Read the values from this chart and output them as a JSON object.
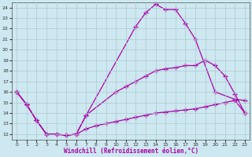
{
  "xlabel": "Windchill (Refroidissement éolien,°C)",
  "xlim": [
    -0.5,
    23.5
  ],
  "ylim": [
    11.5,
    24.5
  ],
  "yticks": [
    12,
    13,
    14,
    15,
    16,
    17,
    18,
    19,
    20,
    21,
    22,
    23,
    24
  ],
  "xticks": [
    0,
    1,
    2,
    3,
    4,
    5,
    6,
    7,
    8,
    9,
    10,
    11,
    12,
    13,
    14,
    15,
    16,
    17,
    18,
    19,
    20,
    21,
    22,
    23
  ],
  "bg_color": "#cde8f0",
  "line_color": "#aa00aa",
  "grid_color": "#b0c8d0",
  "line1_x": [
    0,
    1,
    2,
    3,
    4,
    5,
    6,
    7,
    12,
    13,
    14,
    15,
    16,
    17,
    18,
    20,
    22,
    23
  ],
  "line1_y": [
    16.0,
    14.8,
    13.3,
    12.0,
    12.0,
    11.9,
    12.0,
    13.8,
    22.2,
    23.5,
    24.3,
    23.8,
    23.8,
    22.5,
    21.0,
    16.0,
    15.3,
    15.2
  ],
  "line2_x": [
    0,
    1,
    2,
    3,
    4,
    5,
    6,
    7,
    10,
    11,
    12,
    13,
    14,
    15,
    16,
    17,
    18,
    19,
    20,
    21,
    22,
    23
  ],
  "line2_y": [
    16.0,
    14.8,
    13.3,
    12.0,
    12.0,
    11.9,
    12.0,
    13.8,
    16.0,
    16.5,
    17.0,
    17.5,
    18.0,
    18.2,
    18.3,
    18.5,
    18.5,
    19.0,
    18.5,
    17.5,
    15.8,
    14.0
  ],
  "line3_x": [
    0,
    1,
    2,
    3,
    4,
    5,
    6,
    7,
    8,
    9,
    10,
    11,
    12,
    13,
    14,
    15,
    16,
    17,
    18,
    19,
    20,
    21,
    22,
    23
  ],
  "line3_y": [
    16.0,
    14.8,
    13.3,
    12.0,
    12.0,
    11.9,
    12.0,
    12.5,
    12.8,
    13.0,
    13.2,
    13.4,
    13.6,
    13.8,
    14.0,
    14.1,
    14.2,
    14.3,
    14.4,
    14.6,
    14.8,
    15.0,
    15.2,
    14.0
  ],
  "line1_markers_x": [
    0,
    1,
    2,
    3,
    4,
    5,
    6,
    7,
    12,
    13,
    14,
    15,
    16,
    17,
    18,
    20,
    22,
    23
  ],
  "line1_markers_y": [
    16.0,
    14.8,
    13.3,
    12.0,
    12.0,
    11.9,
    12.0,
    13.8,
    22.2,
    23.5,
    24.3,
    23.8,
    23.8,
    22.5,
    21.0,
    16.0,
    15.3,
    15.2
  ]
}
